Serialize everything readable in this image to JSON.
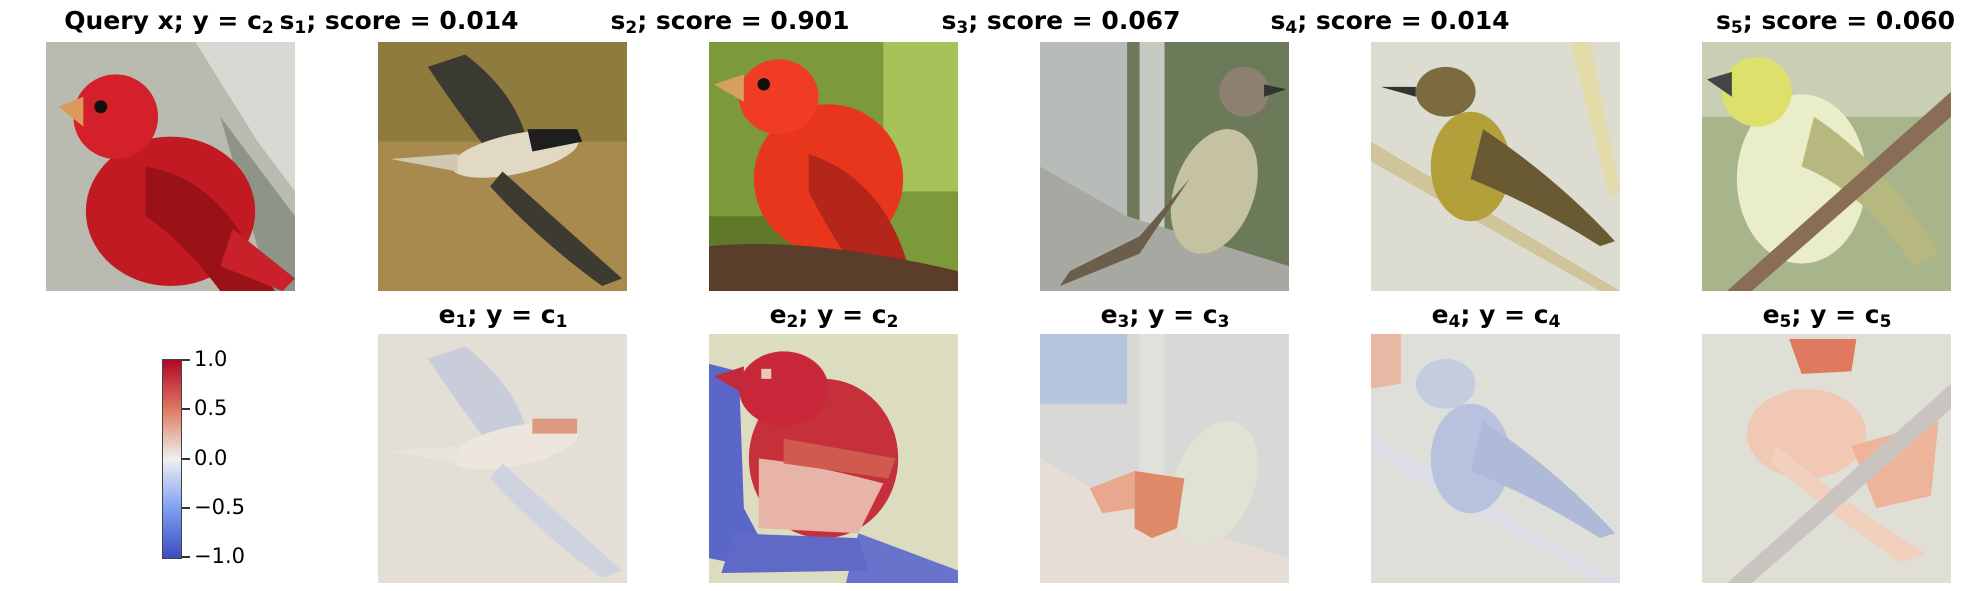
{
  "top_row": [
    {
      "id": "query",
      "title_main": "Query x; y = c",
      "title_sub": "2"
    },
    {
      "id": "s1",
      "title_pre": "s",
      "title_sub": "1",
      "title_post": "; score = 0.014"
    },
    {
      "id": "s2",
      "title_pre": "s",
      "title_sub": "2",
      "title_post": "; score = 0.901"
    },
    {
      "id": "s3",
      "title_pre": "s",
      "title_sub": "3",
      "title_post": "; score = 0.067"
    },
    {
      "id": "s4",
      "title_pre": "s",
      "title_sub": "4",
      "title_post": "; score = 0.014"
    },
    {
      "id": "s5",
      "title_pre": "s",
      "title_sub": "5",
      "title_post": "; score = 0.060"
    }
  ],
  "bottom_row": [
    {
      "id": "e1",
      "title_pre": "e",
      "title_sub": "1",
      "title_mid": "; y = c",
      "title_sub2": "1"
    },
    {
      "id": "e2",
      "title_pre": "e",
      "title_sub": "2",
      "title_mid": "; y = c",
      "title_sub2": "2"
    },
    {
      "id": "e3",
      "title_pre": "e",
      "title_sub": "3",
      "title_mid": "; y = c",
      "title_sub2": "3"
    },
    {
      "id": "e4",
      "title_pre": "e",
      "title_sub": "4",
      "title_mid": "; y = c",
      "title_sub2": "4"
    },
    {
      "id": "e5",
      "title_pre": "e",
      "title_sub": "5",
      "title_mid": "; y = c",
      "title_sub2": "5"
    }
  ],
  "colorbar": {
    "ticks": [
      "1.0",
      "0.5",
      "0.0",
      "−0.5",
      "−1.0"
    ],
    "colors": {
      "max": "#b40426",
      "mid": "#f0f0f0",
      "min": "#3b4cc0"
    }
  }
}
